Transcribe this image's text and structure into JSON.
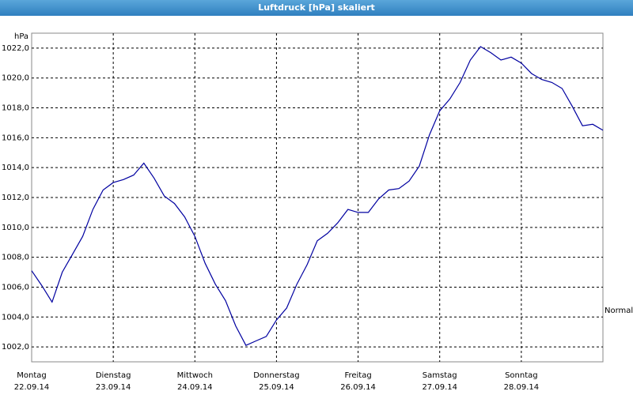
{
  "chart_data": {
    "type": "line",
    "title": "Luftdruck [hPa] skaliert",
    "y_unit": "hPa",
    "annotation": "Normal",
    "xlim": [
      0,
      7
    ],
    "xticks": [
      {
        "value": 0,
        "label": "Montag",
        "date": "22.09.14"
      },
      {
        "value": 1,
        "label": "Dienstag",
        "date": "23.09.14"
      },
      {
        "value": 2,
        "label": "Mittwoch",
        "date": "24.09.14"
      },
      {
        "value": 3,
        "label": "Donnerstag",
        "date": "25.09.14"
      },
      {
        "value": 4,
        "label": "Freitag",
        "date": "26.09.14"
      },
      {
        "value": 5,
        "label": "Samstag",
        "date": "27.09.14"
      },
      {
        "value": 6,
        "label": "Sonntag",
        "date": "28.09.14"
      }
    ],
    "ylim": [
      1001,
      1023
    ],
    "yticks": [
      {
        "value": 1002,
        "label": "1002,0"
      },
      {
        "value": 1004,
        "label": "1004,0"
      },
      {
        "value": 1006,
        "label": "1006,0"
      },
      {
        "value": 1008,
        "label": "1008,0"
      },
      {
        "value": 1010,
        "label": "1010,0"
      },
      {
        "value": 1012,
        "label": "1012,0"
      },
      {
        "value": 1014,
        "label": "1014,0"
      },
      {
        "value": 1016,
        "label": "1016,0"
      },
      {
        "value": 1018,
        "label": "1018,0"
      },
      {
        "value": 1020,
        "label": "1020,0"
      },
      {
        "value": 1022,
        "label": "1022,0"
      }
    ],
    "grid": true,
    "series": [
      {
        "name": "Luftdruck",
        "color": "#0000a0",
        "values": [
          1007.1,
          1006.1,
          1005.0,
          1007.0,
          1008.2,
          1009.4,
          1011.2,
          1012.5,
          1013.0,
          1013.2,
          1013.5,
          1014.3,
          1013.3,
          1012.1,
          1011.6,
          1010.7,
          1009.4,
          1007.6,
          1006.2,
          1005.1,
          1003.4,
          1002.1,
          1002.4,
          1002.7,
          1003.8,
          1004.6,
          1006.2,
          1007.5,
          1009.1,
          1009.6,
          1010.3,
          1011.2,
          1011.0,
          1011.0,
          1011.9,
          1012.5,
          1012.6,
          1013.1,
          1014.1,
          1016.2,
          1017.8,
          1018.6,
          1019.7,
          1021.2,
          1022.1,
          1021.7,
          1021.2,
          1021.4,
          1021.0,
          1020.3,
          1019.9,
          1019.7,
          1019.3,
          1018.1,
          1016.8,
          1016.9,
          1016.5
        ]
      }
    ]
  }
}
